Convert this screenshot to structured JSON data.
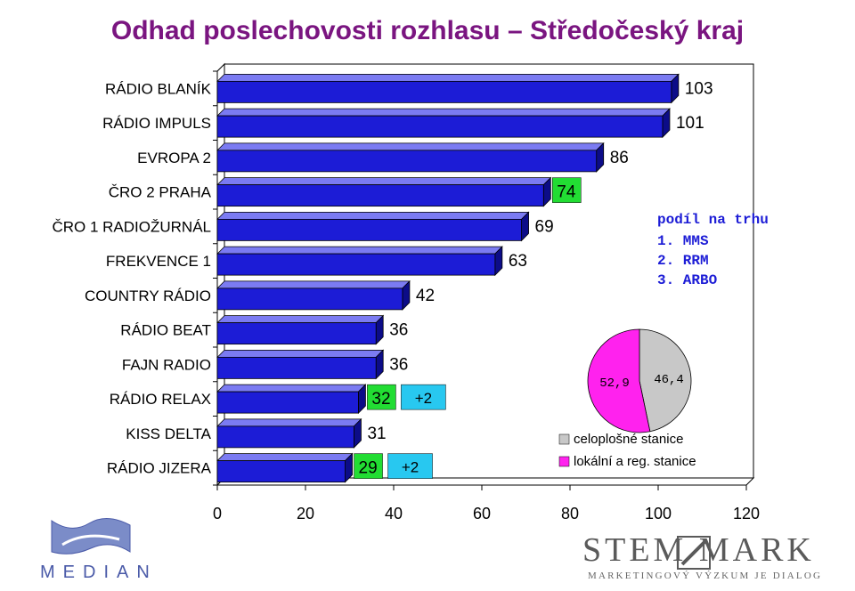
{
  "title": "Odhad poslechovosti rozhlasu – Středočeský kraj",
  "chart_data": {
    "type": "bar",
    "orientation": "horizontal",
    "categories": [
      "RÁDIO BLANÍK",
      "RÁDIO IMPULS",
      "EVROPA 2",
      "ČRO 2 PRAHA",
      "ČRO 1 RADIOŽURNÁL",
      "FREKVENCE 1",
      "COUNTRY RÁDIO",
      "RÁDIO BEAT",
      "FAJN RADIO",
      "RÁDIO RELAX",
      "KISS DELTA",
      "RÁDIO JIZERA"
    ],
    "values": [
      103,
      101,
      86,
      74,
      69,
      63,
      42,
      36,
      36,
      32,
      31,
      29
    ],
    "labels": [
      "103",
      "101",
      "86",
      "74",
      "69",
      "63",
      "42",
      "36",
      "36",
      "32",
      "31",
      "29"
    ],
    "label_highlight": [
      "none",
      "none",
      "none",
      "green",
      "none",
      "none",
      "none",
      "none",
      "none",
      "green",
      "none",
      "green"
    ],
    "extra_labels": [
      {
        "category": "RÁDIO RELAX",
        "text": "+2"
      },
      {
        "category": "RÁDIO JIZERA",
        "text": "+2"
      }
    ],
    "xlim": [
      0,
      120
    ],
    "xticks": [
      "0",
      "20",
      "40",
      "60",
      "80",
      "100",
      "120"
    ],
    "bar_color": "#1c1cd6",
    "colors": {
      "green_label": "#22dd33",
      "cyan_label": "#28c8f0"
    }
  },
  "market_share": {
    "title": "podíl na trhu",
    "items": [
      "1. MMS",
      "2. RRM",
      "3. ARBO"
    ],
    "pie": {
      "type": "pie",
      "values": [
        52.9,
        46.4
      ],
      "labels": [
        "52,9",
        "46,4"
      ],
      "colors": [
        "#ff22ee",
        "#c8c8c8"
      ]
    },
    "legend": [
      {
        "label": "celoplošné stanice",
        "color": "#c8c8c8"
      },
      {
        "label": "lokální a reg. stanice",
        "color": "#ff22ee"
      }
    ]
  },
  "logos": {
    "median": "MEDIAN",
    "stem_name": "STEM MARK",
    "stem_sub": "MARKETINGOVÝ VÝZKUM JE DIALOG"
  }
}
